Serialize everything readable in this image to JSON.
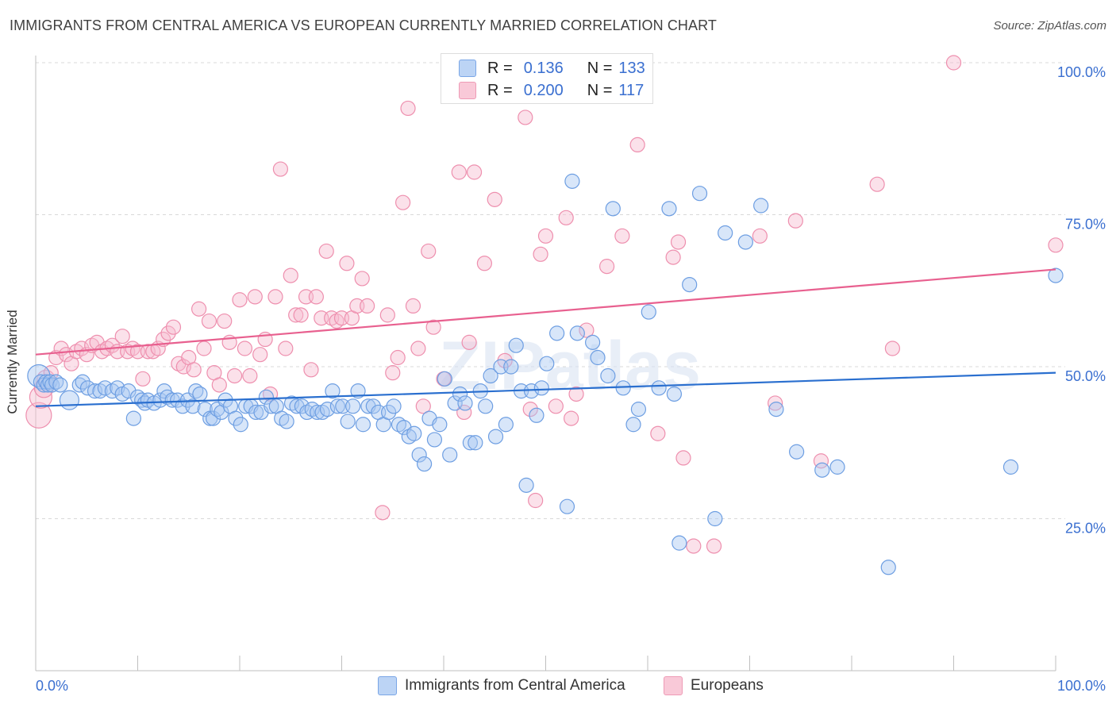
{
  "title": "IMMIGRANTS FROM CENTRAL AMERICA VS EUROPEAN CURRENTLY MARRIED CORRELATION CHART",
  "source": "Source: ZipAtlas.com",
  "watermark": "ZIPatlas",
  "legend_top": {
    "rows": [
      {
        "r_label": "R =",
        "r_value": "0.136",
        "n_label": "N =",
        "n_value": "133"
      },
      {
        "r_label": "R =",
        "r_value": "0.200",
        "n_label": "N =",
        "n_value": "117"
      }
    ]
  },
  "bottom_legend": {
    "items": [
      {
        "label": "Immigrants from Central America"
      },
      {
        "label": "Europeans"
      }
    ]
  },
  "colors": {
    "blue_fill": "#a9c8f2",
    "blue_stroke": "#6d9ee2",
    "blue_line": "#2a6fcf",
    "pink_fill": "#f7bdd0",
    "pink_stroke": "#ee8fae",
    "pink_line": "#e8608f",
    "grid": "#d9d9d9",
    "tick_label": "#3a6fd0"
  },
  "chart_data": {
    "type": "scatter",
    "title": "IMMIGRANTS FROM CENTRAL AMERICA VS EUROPEAN CURRENTLY MARRIED CORRELATION CHART",
    "xlabel": "",
    "ylabel": "Currently Married",
    "xlim": [
      0,
      100
    ],
    "ylim": [
      0,
      104
    ],
    "x_tick_labels": [
      "0.0%",
      "100.0%"
    ],
    "y_ticks": [
      25,
      50,
      75,
      100
    ],
    "y_tick_labels": [
      "25.0%",
      "50.0%",
      "75.0%",
      "100.0%"
    ],
    "grid": true,
    "legend_position": "top-center",
    "series": [
      {
        "name": "Immigrants from Central America",
        "color": "#6d9ee2",
        "r": 0.136,
        "n": 133,
        "trend": {
          "x": [
            0,
            100
          ],
          "y": [
            43.5,
            49
          ]
        },
        "points": [
          [
            0.3,
            48.5
          ],
          [
            0.5,
            47.5
          ],
          [
            0.8,
            47
          ],
          [
            1,
            47.5
          ],
          [
            1.2,
            47
          ],
          [
            1.4,
            47.5
          ],
          [
            1.6,
            47
          ],
          [
            2,
            47.5
          ],
          [
            2.4,
            47
          ],
          [
            3.3,
            44.5
          ],
          [
            4.3,
            47
          ],
          [
            4.6,
            47.5
          ],
          [
            5.1,
            46.5
          ],
          [
            5.8,
            46
          ],
          [
            6.3,
            46
          ],
          [
            6.8,
            46.5
          ],
          [
            7.5,
            46
          ],
          [
            8,
            46.5
          ],
          [
            8.5,
            45.5
          ],
          [
            9.1,
            46
          ],
          [
            9.6,
            41.5
          ],
          [
            10,
            45
          ],
          [
            10.4,
            44.5
          ],
          [
            10.7,
            44
          ],
          [
            11,
            44.5
          ],
          [
            11.6,
            44
          ],
          [
            12.2,
            44.5
          ],
          [
            12.6,
            46
          ],
          [
            12.9,
            45
          ],
          [
            13.4,
            44.5
          ],
          [
            13.9,
            44.5
          ],
          [
            14.4,
            43.5
          ],
          [
            14.9,
            44.5
          ],
          [
            15.4,
            43.5
          ],
          [
            15.7,
            46
          ],
          [
            16.1,
            45.5
          ],
          [
            16.6,
            43
          ],
          [
            17.1,
            41.5
          ],
          [
            17.4,
            41.5
          ],
          [
            17.8,
            43
          ],
          [
            18.2,
            42.5
          ],
          [
            18.6,
            44.5
          ],
          [
            19.1,
            43.5
          ],
          [
            19.6,
            41.5
          ],
          [
            20.1,
            40.5
          ],
          [
            20.6,
            43.5
          ],
          [
            21.1,
            43.5
          ],
          [
            21.6,
            42.5
          ],
          [
            22.1,
            42.5
          ],
          [
            22.6,
            45
          ],
          [
            23.1,
            43.5
          ],
          [
            23.6,
            43.5
          ],
          [
            24.1,
            41.5
          ],
          [
            24.6,
            41
          ],
          [
            25.1,
            44
          ],
          [
            25.6,
            43.5
          ],
          [
            26.1,
            43.5
          ],
          [
            26.6,
            42.5
          ],
          [
            27.1,
            43
          ],
          [
            27.6,
            42.5
          ],
          [
            28.1,
            42.5
          ],
          [
            28.6,
            43
          ],
          [
            29.1,
            46
          ],
          [
            29.6,
            43.5
          ],
          [
            30.1,
            43.5
          ],
          [
            30.6,
            41
          ],
          [
            31.1,
            43.5
          ],
          [
            31.6,
            46
          ],
          [
            32.1,
            40.5
          ],
          [
            32.6,
            43.5
          ],
          [
            33.1,
            43.5
          ],
          [
            33.6,
            42.5
          ],
          [
            34.1,
            40.5
          ],
          [
            34.6,
            42.5
          ],
          [
            35.1,
            43.5
          ],
          [
            35.6,
            40.5
          ],
          [
            36.1,
            40
          ],
          [
            36.6,
            38.5
          ],
          [
            37.1,
            39
          ],
          [
            37.6,
            35.5
          ],
          [
            38.1,
            34
          ],
          [
            38.6,
            41.5
          ],
          [
            39.1,
            38
          ],
          [
            39.6,
            40.5
          ],
          [
            40.1,
            48
          ],
          [
            40.6,
            35.5
          ],
          [
            41.1,
            44
          ],
          [
            41.6,
            45.5
          ],
          [
            42.1,
            44
          ],
          [
            42.6,
            37.5
          ],
          [
            43.1,
            37.5
          ],
          [
            43.6,
            46
          ],
          [
            44.1,
            43.5
          ],
          [
            44.6,
            48.5
          ],
          [
            45.1,
            38.5
          ],
          [
            45.6,
            50
          ],
          [
            46.1,
            40.5
          ],
          [
            46.6,
            50
          ],
          [
            47.1,
            53.5
          ],
          [
            47.6,
            46
          ],
          [
            48.1,
            30.5
          ],
          [
            48.6,
            46
          ],
          [
            49.1,
            42
          ],
          [
            49.6,
            46.5
          ],
          [
            50.1,
            50.5
          ],
          [
            51.1,
            55.5
          ],
          [
            52.1,
            27
          ],
          [
            52.6,
            80.5
          ],
          [
            53.1,
            55.5
          ],
          [
            54.6,
            54
          ],
          [
            55.1,
            51.5
          ],
          [
            56.1,
            48.5
          ],
          [
            56.6,
            76
          ],
          [
            57.6,
            46.5
          ],
          [
            58.6,
            40.5
          ],
          [
            59.1,
            43
          ],
          [
            60.1,
            59
          ],
          [
            61.1,
            46.5
          ],
          [
            62.1,
            76
          ],
          [
            62.6,
            45.5
          ],
          [
            63.1,
            21
          ],
          [
            64.1,
            63.5
          ],
          [
            65.1,
            78.5
          ],
          [
            66.6,
            25
          ],
          [
            67.6,
            72
          ],
          [
            69.6,
            70.5
          ],
          [
            71.1,
            76.5
          ],
          [
            72.6,
            43
          ],
          [
            74.6,
            36
          ],
          [
            77.1,
            33
          ],
          [
            78.6,
            33.5
          ],
          [
            83.6,
            17
          ],
          [
            95.6,
            33.5
          ],
          [
            100,
            65
          ]
        ]
      },
      {
        "name": "Europeans",
        "color": "#ee8fae",
        "r": 0.2,
        "n": 117,
        "trend": {
          "x": [
            0,
            100
          ],
          "y": [
            52,
            66
          ]
        },
        "points": [
          [
            0.3,
            42
          ],
          [
            0.5,
            45
          ],
          [
            0.8,
            46.5
          ],
          [
            1,
            48
          ],
          [
            1.5,
            49
          ],
          [
            2,
            51.5
          ],
          [
            2.5,
            53
          ],
          [
            3,
            52
          ],
          [
            3.5,
            50.5
          ],
          [
            4,
            52.5
          ],
          [
            4.5,
            53
          ],
          [
            5,
            52
          ],
          [
            5.5,
            53.5
          ],
          [
            6,
            54
          ],
          [
            6.5,
            52.5
          ],
          [
            7,
            53
          ],
          [
            7.5,
            53.5
          ],
          [
            8,
            52.5
          ],
          [
            8.5,
            55
          ],
          [
            9,
            52.5
          ],
          [
            9.5,
            53
          ],
          [
            10,
            52.5
          ],
          [
            10.5,
            48
          ],
          [
            11,
            52.5
          ],
          [
            11.5,
            52.5
          ],
          [
            12,
            53
          ],
          [
            12.5,
            54.5
          ],
          [
            13,
            55.5
          ],
          [
            13.5,
            56.5
          ],
          [
            14,
            50.5
          ],
          [
            14.5,
            50
          ],
          [
            15,
            51.5
          ],
          [
            15.5,
            49.5
          ],
          [
            16,
            59.5
          ],
          [
            16.5,
            53
          ],
          [
            17,
            57.5
          ],
          [
            17.5,
            49
          ],
          [
            18,
            47
          ],
          [
            18.5,
            57.5
          ],
          [
            19,
            54
          ],
          [
            19.5,
            48.5
          ],
          [
            20,
            61
          ],
          [
            20.5,
            53
          ],
          [
            21,
            48.5
          ],
          [
            21.5,
            61.5
          ],
          [
            22,
            52
          ],
          [
            22.5,
            54.5
          ],
          [
            23,
            45.5
          ],
          [
            23.5,
            61.5
          ],
          [
            24,
            82.5
          ],
          [
            24.5,
            53
          ],
          [
            25,
            65
          ],
          [
            25.5,
            58.5
          ],
          [
            26,
            58.5
          ],
          [
            26.5,
            61.5
          ],
          [
            27,
            49.5
          ],
          [
            27.5,
            61.5
          ],
          [
            28,
            58
          ],
          [
            28.5,
            69
          ],
          [
            29,
            58
          ],
          [
            29.5,
            57.5
          ],
          [
            30,
            58
          ],
          [
            30.5,
            67
          ],
          [
            31,
            58
          ],
          [
            31.5,
            60
          ],
          [
            32,
            64.5
          ],
          [
            32.5,
            60
          ],
          [
            34,
            26
          ],
          [
            34.5,
            58.5
          ],
          [
            35,
            49
          ],
          [
            35.5,
            51.5
          ],
          [
            36,
            77
          ],
          [
            36.5,
            92.5
          ],
          [
            37,
            60
          ],
          [
            37.5,
            53
          ],
          [
            38,
            43.5
          ],
          [
            38.5,
            69
          ],
          [
            39,
            56.5
          ],
          [
            40,
            48
          ],
          [
            41.5,
            82
          ],
          [
            42,
            42.5
          ],
          [
            42.5,
            54
          ],
          [
            43,
            82
          ],
          [
            44,
            67
          ],
          [
            45,
            77.5
          ],
          [
            46,
            51
          ],
          [
            48,
            91
          ],
          [
            48.5,
            43
          ],
          [
            49,
            28
          ],
          [
            49.5,
            68.5
          ],
          [
            50,
            71.5
          ],
          [
            51,
            43.5
          ],
          [
            52,
            74.5
          ],
          [
            52.5,
            41.5
          ],
          [
            53,
            45.5
          ],
          [
            54,
            56
          ],
          [
            56,
            66.5
          ],
          [
            57.5,
            71.5
          ],
          [
            59,
            86.5
          ],
          [
            61,
            39
          ],
          [
            62.5,
            68
          ],
          [
            63,
            70.5
          ],
          [
            63.5,
            35
          ],
          [
            64.5,
            20.5
          ],
          [
            66.5,
            20.5
          ],
          [
            71,
            71.5
          ],
          [
            72.5,
            44
          ],
          [
            74.5,
            74
          ],
          [
            77,
            34.5
          ],
          [
            82.5,
            80
          ],
          [
            84,
            53
          ],
          [
            90,
            100
          ],
          [
            100,
            70
          ]
        ]
      }
    ]
  }
}
